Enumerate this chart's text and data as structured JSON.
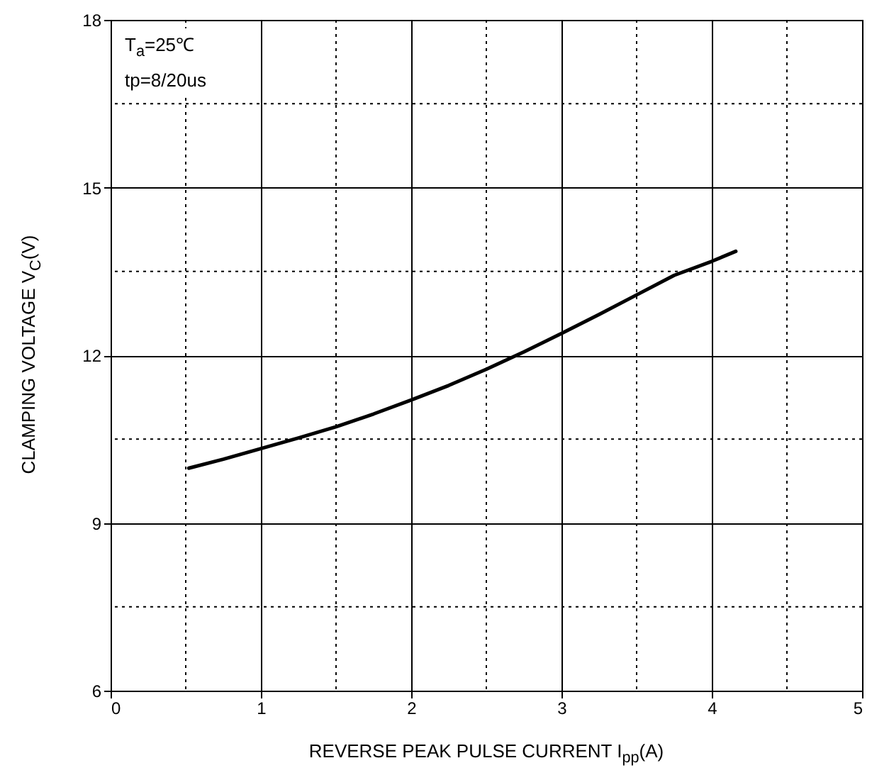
{
  "chart_data": {
    "type": "line",
    "xlabel": "REVERSE PEAK PULSE CURRENT  I$_{pp}$(A)",
    "ylabel": "CLAMPING VOLTAGE  V$_{C}$(V)",
    "annotations": [
      "T$_{a}$=25℃",
      "tp=8/20us"
    ],
    "x": [
      0.52,
      0.75,
      1,
      1.25,
      1.5,
      1.75,
      2,
      2.25,
      2.5,
      2.75,
      3,
      3.25,
      3.5,
      3.75,
      4,
      4.16
    ],
    "series": [
      {
        "color": "#000000",
        "values": [
          9.98,
          10.14,
          10.33,
          10.52,
          10.72,
          10.95,
          11.2,
          11.46,
          11.75,
          12.06,
          12.39,
          12.73,
          13.08,
          13.43,
          13.68,
          13.86
        ]
      }
    ],
    "xlim": [
      0,
      5
    ],
    "xticks": [
      0,
      1,
      2,
      3,
      4,
      5
    ],
    "ylim": [
      6,
      18
    ],
    "yticks": [
      6,
      9,
      12,
      15,
      18
    ],
    "grid": true,
    "marker": "none",
    "line_style": "solid"
  }
}
